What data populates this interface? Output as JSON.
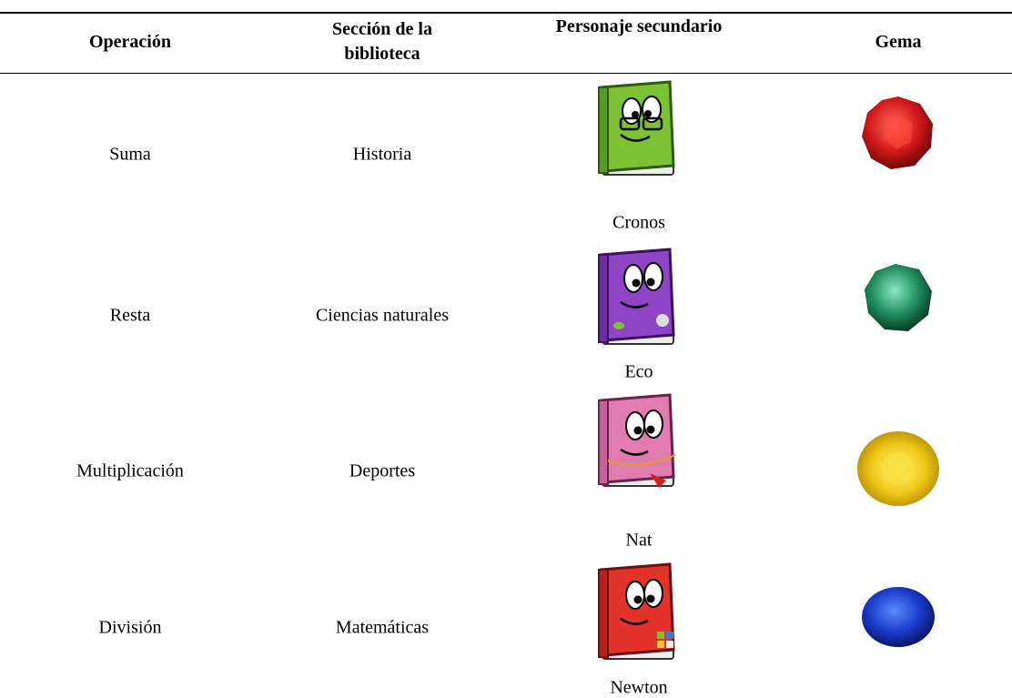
{
  "header": [
    "Operación",
    "Sección de la biblioteca",
    "Personaje secundario",
    "Gema"
  ],
  "rows": [
    [
      "Suma",
      "Historia",
      "Cronos"
    ],
    [
      "Resta",
      "Ciencias naturales",
      "Eco"
    ],
    [
      "Multiplicación",
      "Deportes",
      "Nat"
    ],
    [
      "División",
      "Matemáticas",
      "Newton"
    ]
  ]
}
